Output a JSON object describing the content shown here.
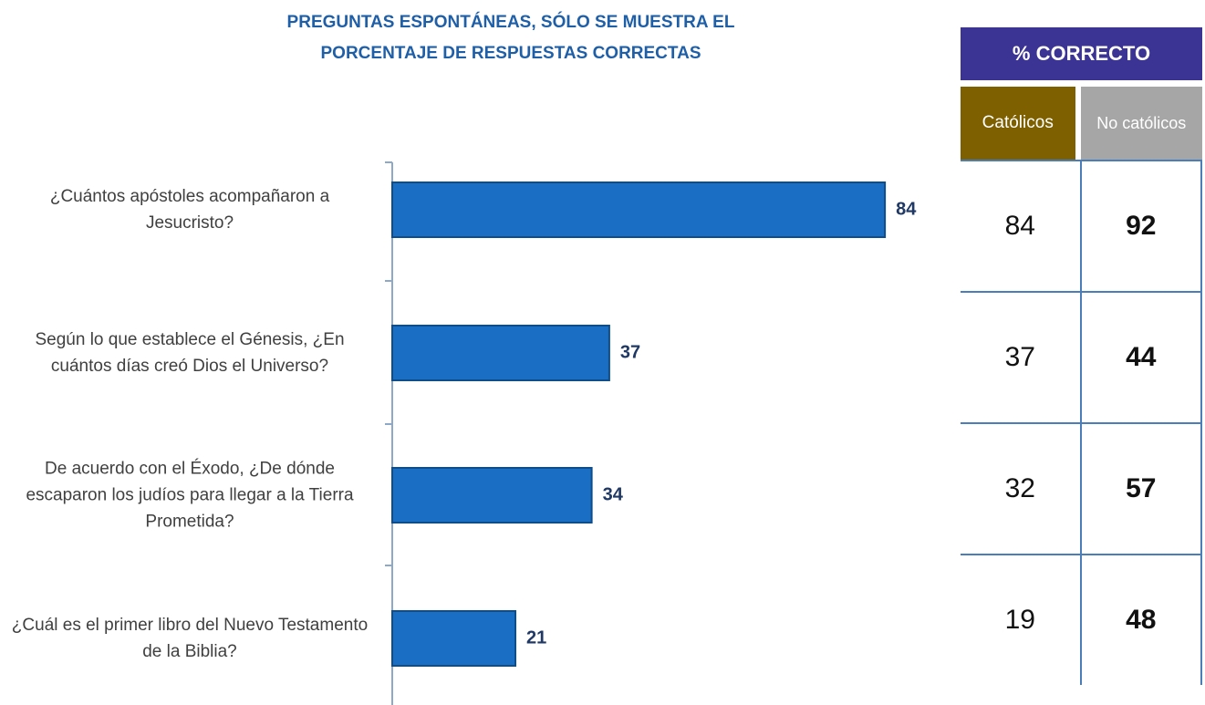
{
  "chart_data": {
    "type": "barh",
    "title": "PREGUNTAS ESPONTÁNEAS, SÓLO SE MUESTRA EL PORCENTAJE DE RESPUESTAS CORRECTAS",
    "categories": [
      "¿Cuántos apóstoles acompañaron a Jesucristo?",
      "Según lo que establece el Génesis, ¿En cuántos días creó Dios el Universo?",
      "De acuerdo con el Éxodo, ¿De dónde escaparon los judíos para llegar a la Tierra Prometida?",
      "¿Cuál es el primer libro del Nuevo Testamento de la Biblia?"
    ],
    "values": [
      84,
      37,
      34,
      21
    ],
    "color": "#1a6fc4",
    "xlim": [
      0,
      100
    ]
  },
  "table": {
    "title": "% CORRECTO",
    "columns": [
      "Católicos",
      "No católicos"
    ],
    "rows": [
      [
        84,
        92
      ],
      [
        37,
        44
      ],
      [
        32,
        57
      ],
      [
        19,
        48
      ]
    ]
  }
}
